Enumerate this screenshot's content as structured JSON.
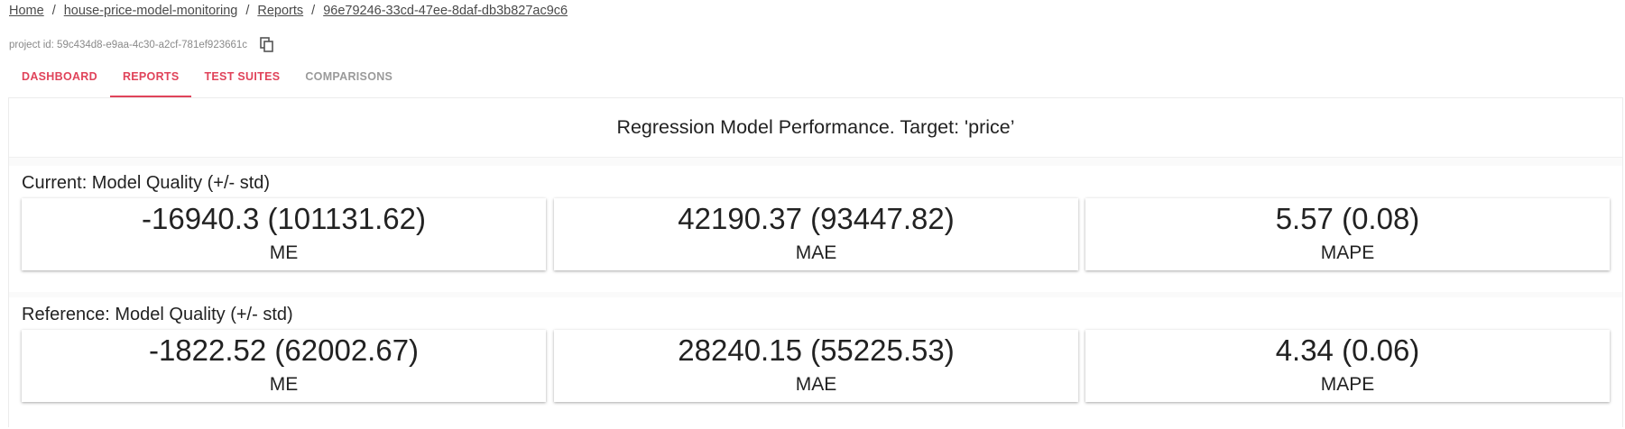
{
  "breadcrumb": {
    "home": "Home",
    "project": "house-price-model-monitoring",
    "reports": "Reports",
    "report_id": "96e79246-33cd-47ee-8daf-db3b827ac9c6",
    "separator": "/"
  },
  "project": {
    "id_text": "project id: 59c434d8-e9aa-4c30-a2cf-781ef923661c",
    "copy_icon": "copy-icon"
  },
  "tabs": [
    {
      "label": "DASHBOARD",
      "state": "normal"
    },
    {
      "label": "REPORTS",
      "state": "active"
    },
    {
      "label": "TEST SUITES",
      "state": "normal"
    },
    {
      "label": "COMPARISONS",
      "state": "inactive"
    }
  ],
  "colors": {
    "accent": "#e0435a",
    "muted": "#9a9a9a"
  },
  "report": {
    "title": "Regression Model Performance. Target: 'price’",
    "current": {
      "title": "Current: Model Quality (+/- std)",
      "metrics": [
        {
          "value": "-16940.3 (101131.62)",
          "label": "ME"
        },
        {
          "value": "42190.37 (93447.82)",
          "label": "MAE"
        },
        {
          "value": "5.57 (0.08)",
          "label": "MAPE"
        }
      ]
    },
    "reference": {
      "title": "Reference: Model Quality (+/- std)",
      "metrics": [
        {
          "value": "-1822.52 (62002.67)",
          "label": "ME"
        },
        {
          "value": "28240.15 (55225.53)",
          "label": "MAE"
        },
        {
          "value": "4.34 (0.06)",
          "label": "MAPE"
        }
      ]
    }
  }
}
